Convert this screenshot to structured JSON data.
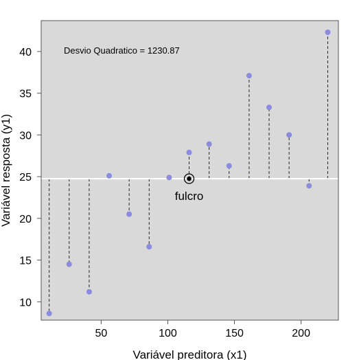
{
  "chart_data": {
    "type": "scatter",
    "xlabel": "Variável preditora (x1)",
    "ylabel": "Variável resposta (y1)",
    "xlim": [
      5,
      228
    ],
    "ylim": [
      7.8,
      43.7
    ],
    "xticks": [
      50,
      100,
      150,
      200
    ],
    "yticks": [
      10,
      15,
      20,
      25,
      30,
      35,
      40
    ],
    "grid": false,
    "background_color": "#d9d9d9",
    "point_color": "#8b8be0",
    "mean_line_color": "#ffffff",
    "annotation": "Desvio Quadratico = 1230.87",
    "mean_y": 24.75,
    "fulcro": {
      "label": "fulcro",
      "x": 116,
      "y": 24.75
    },
    "points": [
      {
        "x": 11,
        "y": 8.6
      },
      {
        "x": 26,
        "y": 14.5
      },
      {
        "x": 41,
        "y": 11.2
      },
      {
        "x": 56,
        "y": 25.1
      },
      {
        "x": 71,
        "y": 20.5
      },
      {
        "x": 86,
        "y": 16.6
      },
      {
        "x": 101,
        "y": 24.9
      },
      {
        "x": 116,
        "y": 27.9
      },
      {
        "x": 131,
        "y": 28.9
      },
      {
        "x": 146,
        "y": 26.3
      },
      {
        "x": 161,
        "y": 37.1
      },
      {
        "x": 176,
        "y": 33.3
      },
      {
        "x": 191,
        "y": 30.0
      },
      {
        "x": 206,
        "y": 23.9
      },
      {
        "x": 220,
        "y": 42.3
      }
    ]
  }
}
